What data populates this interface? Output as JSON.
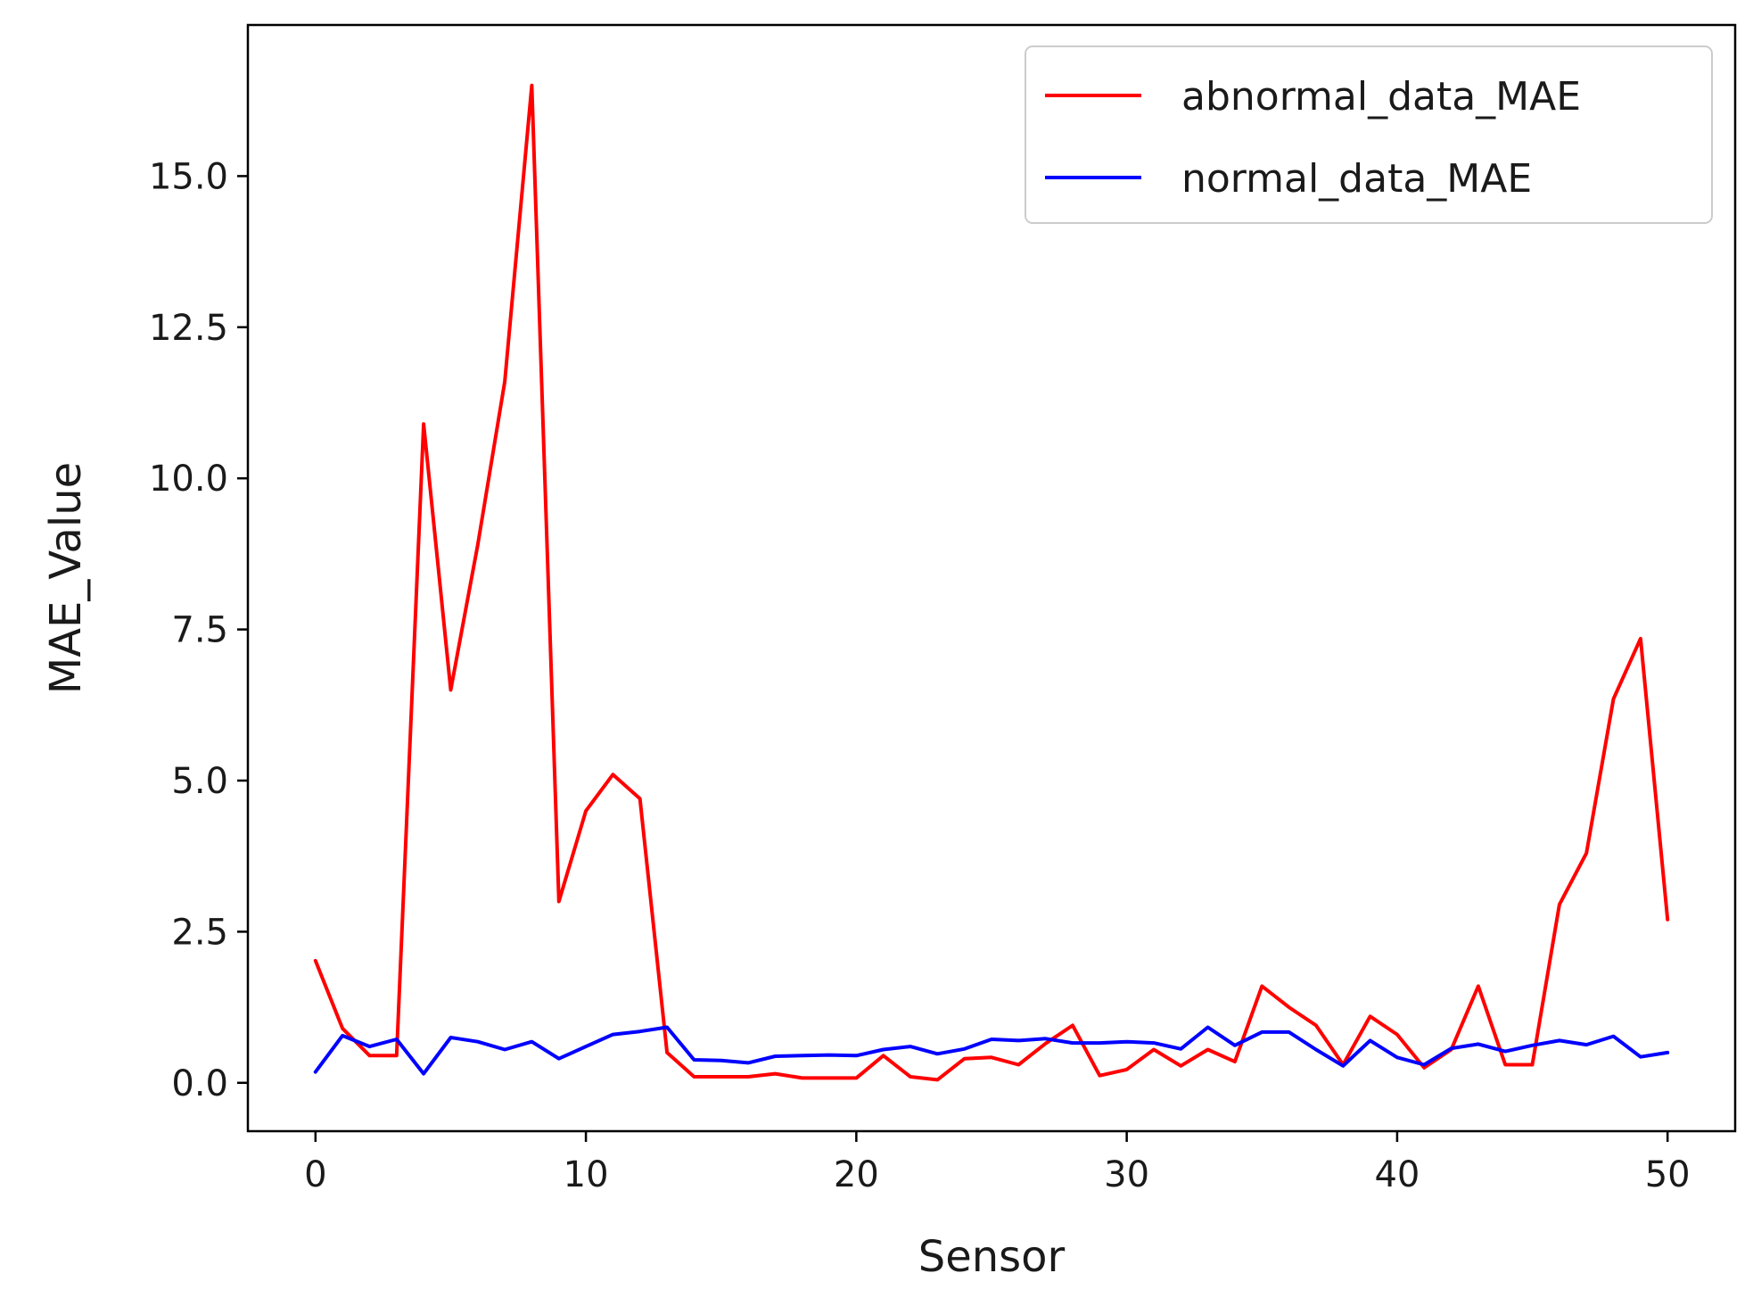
{
  "chart_data": {
    "type": "line",
    "title": "",
    "xlabel": "Sensor",
    "ylabel": "MAE_Value",
    "xlim": [
      -2.5,
      52.5
    ],
    "ylim": [
      -0.8,
      17.5
    ],
    "xticks": [
      0,
      10,
      20,
      30,
      40,
      50
    ],
    "yticks": [
      0.0,
      2.5,
      5.0,
      7.5,
      10.0,
      12.5,
      15.0
    ],
    "xtick_labels": [
      "0",
      "10",
      "20",
      "30",
      "40",
      "50"
    ],
    "ytick_labels": [
      "0.0",
      "2.5",
      "5.0",
      "7.5",
      "10.0",
      "12.5",
      "15.0"
    ],
    "grid": false,
    "legend_position": "top-right",
    "x": [
      0,
      1,
      2,
      3,
      4,
      5,
      6,
      7,
      8,
      9,
      10,
      11,
      12,
      13,
      14,
      15,
      16,
      17,
      18,
      19,
      20,
      21,
      22,
      23,
      24,
      25,
      26,
      27,
      28,
      29,
      30,
      31,
      32,
      33,
      34,
      35,
      36,
      37,
      38,
      39,
      40,
      41,
      42,
      43,
      44,
      45,
      46,
      47,
      48,
      49,
      50
    ],
    "series": [
      {
        "name": "abnormal_data_MAE",
        "color": "#ff0000",
        "values": [
          2.02,
          0.9,
          0.45,
          0.45,
          10.9,
          6.5,
          8.9,
          11.6,
          16.5,
          3.0,
          4.5,
          5.1,
          4.7,
          0.5,
          0.1,
          0.1,
          0.1,
          0.15,
          0.08,
          0.08,
          0.08,
          0.45,
          0.1,
          0.05,
          0.4,
          0.42,
          0.3,
          0.65,
          0.95,
          0.12,
          0.22,
          0.55,
          0.28,
          0.55,
          0.35,
          1.6,
          1.25,
          0.95,
          0.3,
          1.1,
          0.8,
          0.25,
          0.55,
          1.6,
          0.3,
          0.3,
          2.95,
          3.8,
          6.35,
          7.35,
          2.7
        ]
      },
      {
        "name": "normal_data_MAE",
        "color": "#0000ff",
        "values": [
          0.18,
          0.78,
          0.6,
          0.72,
          0.15,
          0.75,
          0.68,
          0.55,
          0.68,
          0.4,
          0.6,
          0.8,
          0.85,
          0.92,
          0.38,
          0.37,
          0.33,
          0.44,
          0.45,
          0.46,
          0.45,
          0.55,
          0.6,
          0.48,
          0.56,
          0.72,
          0.7,
          0.73,
          0.66,
          0.66,
          0.68,
          0.66,
          0.56,
          0.92,
          0.62,
          0.84,
          0.84,
          0.55,
          0.28,
          0.7,
          0.42,
          0.3,
          0.57,
          0.64,
          0.52,
          0.62,
          0.7,
          0.63,
          0.77,
          0.43,
          0.5
        ]
      }
    ]
  }
}
